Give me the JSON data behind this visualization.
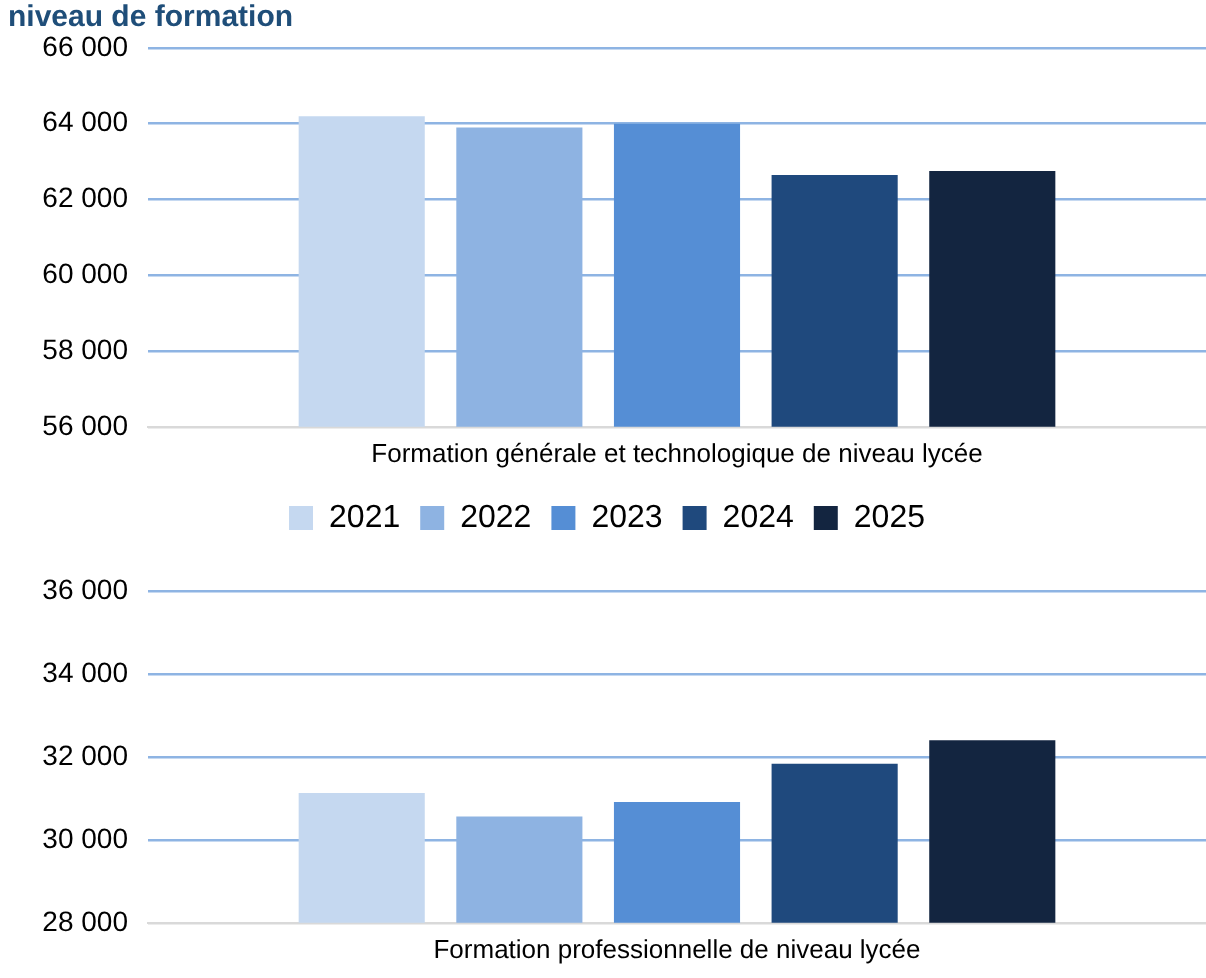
{
  "chart_data": [
    {
      "type": "bar",
      "title": "niveau de formation",
      "categories": [
        "Formation générale et technologique de niveau lycée"
      ],
      "series": [
        {
          "name": "2021",
          "color": "#c5d8f0",
          "values": [
            64200
          ]
        },
        {
          "name": "2022",
          "color": "#8eb3e2",
          "values": [
            63900
          ]
        },
        {
          "name": "2023",
          "color": "#558ed5",
          "values": [
            64000
          ]
        },
        {
          "name": "2024",
          "color": "#1f497d",
          "values": [
            62650
          ]
        },
        {
          "name": "2025",
          "color": "#132540",
          "values": [
            62750
          ]
        }
      ],
      "ylim": [
        56000,
        66000
      ],
      "yticks": [
        {
          "value": 56000,
          "label": "56 000"
        },
        {
          "value": 58000,
          "label": "58 000"
        },
        {
          "value": 60000,
          "label": "60 000"
        },
        {
          "value": 62000,
          "label": "62 000"
        },
        {
          "value": 64000,
          "label": "64 000"
        },
        {
          "value": 66000,
          "label": "66 000"
        }
      ],
      "grid": "y",
      "legend": "bottom"
    },
    {
      "type": "bar",
      "categories": [
        "Formation professionnelle de niveau lycée"
      ],
      "series": [
        {
          "color": "#c5d8f0",
          "values": [
            31130
          ]
        },
        {
          "color": "#8eb3e2",
          "values": [
            30560
          ]
        },
        {
          "color": "#558ed5",
          "values": [
            30910
          ]
        },
        {
          "color": "#1f497d",
          "values": [
            31830
          ]
        },
        {
          "color": "#132540",
          "values": [
            32400
          ]
        }
      ],
      "ylim": [
        28000,
        36000
      ],
      "yticks": [
        {
          "value": 28000,
          "label": "28 000"
        },
        {
          "value": 30000,
          "label": "30 000"
        },
        {
          "value": 32000,
          "label": "32 000"
        },
        {
          "value": 34000,
          "label": "34 000"
        },
        {
          "value": 36000,
          "label": "36 000"
        }
      ],
      "grid": "y"
    }
  ]
}
